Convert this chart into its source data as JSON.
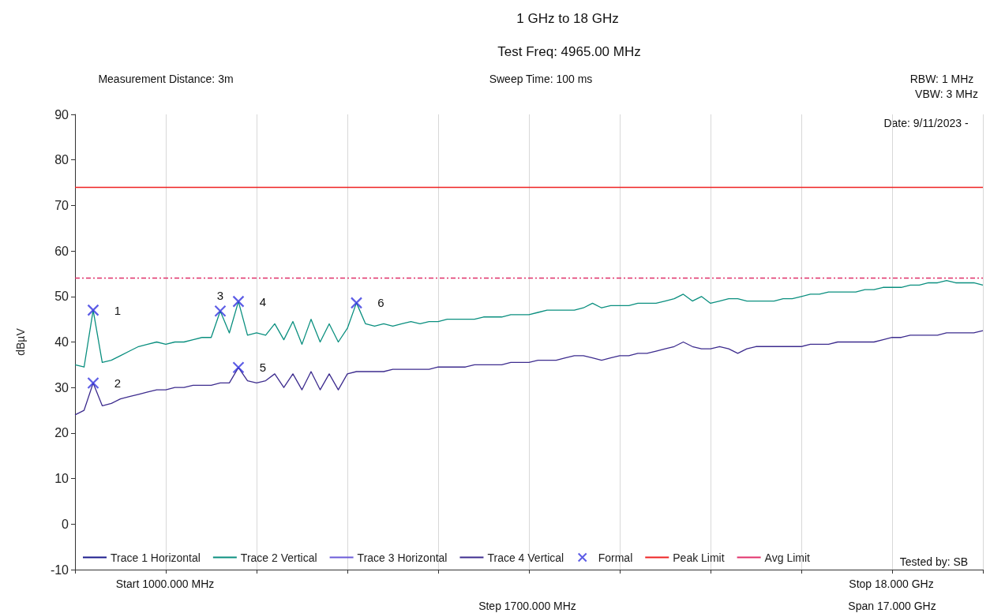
{
  "chart_data": {
    "type": "line",
    "title": "1 GHz to 18 GHz",
    "subtitle": "Test Freq: 4965.00 MHz",
    "ylabel": "dBµV",
    "annotations": [
      "Measurement Distance: 3m",
      "Sweep Time: 100 ms",
      "RBW: 1 MHz",
      "VBW: 3 MHz",
      "Date: 9/11/2023 -",
      "Tested by: SB",
      "Start 1000.000 MHz",
      "Stop 18.000 GHz",
      "Step 1700.000 MHz",
      "Span 17.000 GHz",
      "1",
      "2",
      "3",
      "4",
      "5",
      "6"
    ],
    "categories": [
      null,
      null,
      null,
      null,
      null,
      null,
      null,
      null,
      null,
      null,
      null,
      null,
      null,
      null,
      null,
      null,
      null,
      null,
      null,
      null,
      null,
      null,
      null,
      null,
      null,
      null,
      null,
      null,
      null,
      null,
      null,
      null,
      null,
      null,
      null,
      null,
      null,
      null,
      null,
      null,
      null,
      null,
      null,
      null,
      null,
      null,
      null,
      null,
      null,
      null,
      null,
      null,
      null,
      null,
      null,
      null,
      null,
      null,
      null,
      null,
      null,
      null,
      null,
      null,
      null,
      null,
      null,
      null,
      null,
      null,
      null,
      null,
      null,
      null,
      null,
      null,
      null,
      null,
      null,
      null,
      null,
      null,
      null,
      null,
      null,
      null,
      null,
      null,
      null,
      null,
      null,
      null,
      null,
      null,
      null,
      null,
      null,
      null,
      null,
      null,
      null
    ],
    "ylim": [
      -10,
      90
    ],
    "yticks": [
      -10,
      0,
      10,
      20,
      30,
      40,
      50,
      60,
      70,
      80,
      90
    ],
    "tick_labels": "y",
    "grid": "x",
    "legend": "bottom",
    "marker": "none",
    "line_style": "solid",
    "ref_lines": [
      {
        "axis": "y",
        "value": 74,
        "label": "Peak Limit",
        "color": "#ee2222",
        "line_style": "solid"
      },
      {
        "axis": "y",
        "value": 54,
        "label": "Avg Limit",
        "color": "#e0306a",
        "line_style": "dashed"
      }
    ],
    "series": [
      {
        "name": "Trace 1 Horizontal",
        "color": "#1a1a8c",
        "values": [
          null,
          null,
          null,
          null,
          null,
          null,
          null,
          null,
          null,
          null,
          null,
          null,
          null,
          null,
          null,
          null,
          null,
          null,
          null,
          null,
          null,
          null,
          null,
          null,
          null,
          null,
          null,
          null,
          null,
          null,
          null,
          null,
          null,
          null,
          null,
          null,
          null,
          null,
          null,
          null,
          null,
          null,
          null,
          null,
          null,
          null,
          null,
          null,
          null,
          null,
          null,
          null,
          null,
          null,
          null,
          null,
          null,
          null,
          null,
          null,
          null,
          null,
          null,
          null,
          null,
          null,
          null,
          null,
          null,
          null,
          null,
          null,
          null,
          null,
          null,
          null,
          null,
          null,
          null,
          null,
          null,
          null,
          null,
          null,
          null,
          null,
          null,
          null,
          null,
          null,
          null,
          null,
          null,
          null,
          null,
          null,
          null,
          null,
          null,
          null,
          null
        ]
      },
      {
        "name": "Trace 2 Vertical",
        "color": "#0a8f7f",
        "values": [
          35,
          34.5,
          47,
          35.5,
          36,
          37,
          38,
          39,
          39.5,
          40,
          39.5,
          40,
          40,
          40.5,
          41,
          41,
          46.8,
          42,
          48.9,
          41.5,
          42,
          41.5,
          44,
          40.5,
          44.5,
          39.5,
          45,
          40,
          44,
          40,
          43,
          48.6,
          44,
          43.5,
          44,
          43.5,
          44,
          44.5,
          44,
          44.5,
          44.5,
          45,
          45,
          45,
          45,
          45.5,
          45.5,
          45.5,
          46,
          46,
          46,
          46.5,
          47,
          47,
          47,
          47,
          47.5,
          48.5,
          47.5,
          48,
          48,
          48,
          48.5,
          48.5,
          48.5,
          49,
          49.5,
          50.5,
          49,
          50,
          48.5,
          49,
          49.5,
          49.5,
          49,
          49,
          49,
          49,
          49.5,
          49.5,
          50,
          50.5,
          50.5,
          51,
          51,
          51,
          51,
          51.5,
          51.5,
          52,
          52,
          52,
          52.5,
          52.5,
          53,
          53,
          53.5,
          53,
          53,
          53,
          52.5
        ]
      },
      {
        "name": "Trace 3 Horizontal",
        "color": "#6a5ad8",
        "values": [
          null,
          null,
          null,
          null,
          null,
          null,
          null,
          null,
          null,
          null,
          null,
          null,
          null,
          null,
          null,
          null,
          null,
          null,
          null,
          null,
          null,
          null,
          null,
          null,
          null,
          null,
          null,
          null,
          null,
          null,
          null,
          null,
          null,
          null,
          null,
          null,
          null,
          null,
          null,
          null,
          null,
          null,
          null,
          null,
          null,
          null,
          null,
          null,
          null,
          null,
          null,
          null,
          null,
          null,
          null,
          null,
          null,
          null,
          null,
          null,
          null,
          null,
          null,
          null,
          null,
          null,
          null,
          null,
          null,
          null,
          null,
          null,
          null,
          null,
          null,
          null,
          null,
          null,
          null,
          null,
          null,
          null,
          null,
          null,
          null,
          null,
          null,
          null,
          null,
          null,
          null,
          null,
          null,
          null,
          null,
          null,
          null,
          null,
          null,
          null,
          null
        ]
      },
      {
        "name": "Trace 4 Vertical",
        "color": "#3d2c8e",
        "values": [
          24,
          25,
          31,
          26,
          26.5,
          27.5,
          28,
          28.5,
          29,
          29.5,
          29.5,
          30,
          30,
          30.5,
          30.5,
          30.5,
          31,
          31,
          34.4,
          31.5,
          31,
          31.5,
          33,
          30,
          33,
          29.5,
          33.5,
          29.5,
          33,
          29.5,
          33,
          33.5,
          33.5,
          33.5,
          33.5,
          34,
          34,
          34,
          34,
          34,
          34.5,
          34.5,
          34.5,
          34.5,
          35,
          35,
          35,
          35,
          35.5,
          35.5,
          35.5,
          36,
          36,
          36,
          36.5,
          37,
          37,
          36.5,
          36,
          36.5,
          37,
          37,
          37.5,
          37.5,
          38,
          38.5,
          39,
          40,
          39,
          38.5,
          38.5,
          39,
          38.5,
          37.5,
          38.5,
          39,
          39,
          39,
          39,
          39,
          39,
          39.5,
          39.5,
          39.5,
          40,
          40,
          40,
          40,
          40,
          40.5,
          41,
          41,
          41.5,
          41.5,
          41.5,
          41.5,
          42,
          42,
          42,
          42,
          42.5
        ]
      },
      {
        "name": "Formal",
        "type": "scatter",
        "marker": "cross",
        "color": "#3535e0",
        "values": [
          null,
          null,
          47,
          null,
          null,
          null,
          null,
          null,
          null,
          null,
          null,
          null,
          null,
          null,
          null,
          null,
          46.8,
          null,
          48.9,
          null,
          null,
          null,
          null,
          null,
          null,
          null,
          null,
          null,
          null,
          null,
          null,
          48.6,
          null,
          null,
          null,
          null,
          null,
          null,
          null,
          null,
          null,
          null,
          null,
          null,
          null,
          null,
          null,
          null,
          null,
          null,
          null,
          null,
          null,
          null,
          null,
          null,
          null,
          null,
          null,
          null,
          null,
          null,
          null,
          null,
          null,
          null,
          null,
          null,
          null,
          null,
          null,
          null,
          null,
          null,
          null,
          null,
          null,
          null,
          null,
          null,
          null,
          null,
          null,
          null,
          null,
          null,
          null,
          null,
          null,
          null,
          null,
          null,
          null,
          null,
          null,
          null,
          null,
          null,
          null,
          null,
          null
        ]
      },
      {
        "type": "scatter",
        "marker": "cross",
        "color": "#3535e0",
        "values": [
          null,
          null,
          31,
          null,
          null,
          null,
          null,
          null,
          null,
          null,
          null,
          null,
          null,
          null,
          null,
          null,
          null,
          null,
          34.4,
          null,
          null,
          null,
          null,
          null,
          null,
          null,
          null,
          null,
          null,
          null,
          null,
          null,
          null,
          null,
          null,
          null,
          null,
          null,
          null,
          null,
          null,
          null,
          null,
          null,
          null,
          null,
          null,
          null,
          null,
          null,
          null,
          null,
          null,
          null,
          null,
          null,
          null,
          null,
          null,
          null,
          null,
          null,
          null,
          null,
          null,
          null,
          null,
          null,
          null,
          null,
          null,
          null,
          null,
          null,
          null,
          null,
          null,
          null,
          null,
          null,
          null,
          null,
          null,
          null,
          null,
          null,
          null,
          null,
          null,
          null,
          null,
          null,
          null,
          null,
          null,
          null,
          null,
          null,
          null,
          null,
          null
        ]
      }
    ]
  }
}
